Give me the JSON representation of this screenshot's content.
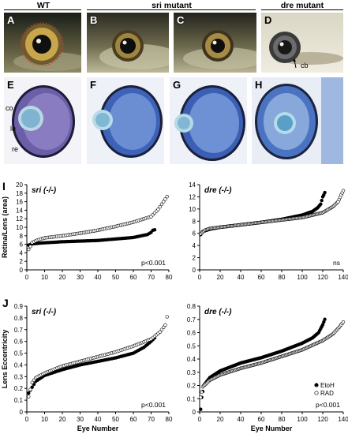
{
  "figure": {
    "headers": {
      "wt": "WT",
      "sri": "sri mutant",
      "dre": "dre mutant"
    },
    "photo_panels": [
      "A",
      "B",
      "C",
      "D"
    ],
    "histology_panels": [
      "E",
      "F",
      "G",
      "H"
    ],
    "annotations": {
      "cb": "cb",
      "co": "co",
      "le": "le",
      "re": "re"
    },
    "row_labels": {
      "i": "I",
      "j": "J"
    }
  },
  "chart_data": [
    {
      "type": "scatter",
      "panel": "I",
      "title": "sri (-/-)",
      "ylabel": "Retina/Lens (area)",
      "xlabel": "",
      "xlim": [
        0,
        80
      ],
      "ylim": [
        0,
        20
      ],
      "xticks": [
        0,
        10,
        20,
        30,
        40,
        50,
        60,
        70,
        80
      ],
      "yticks": [
        0,
        2,
        4,
        6,
        8,
        10,
        12,
        14,
        16,
        18,
        20
      ],
      "annotation": "p<0.001",
      "series": [
        {
          "name": "EtoH",
          "marker": "filled",
          "n": 72,
          "values": [
            [
              1,
              5.8
            ],
            [
              3,
              6.1
            ],
            [
              8,
              6.3
            ],
            [
              20,
              6.6
            ],
            [
              40,
              6.9
            ],
            [
              60,
              7.6
            ],
            [
              68,
              8.3
            ],
            [
              70,
              8.8
            ],
            [
              71,
              9.3
            ],
            [
              72,
              9.4
            ]
          ]
        },
        {
          "name": "RAD",
          "marker": "open",
          "n": 79,
          "values": [
            [
              1,
              4.8
            ],
            [
              2,
              5.5
            ],
            [
              3,
              6.4
            ],
            [
              6,
              7.0
            ],
            [
              10,
              7.5
            ],
            [
              20,
              8.0
            ],
            [
              30,
              8.6
            ],
            [
              40,
              9.3
            ],
            [
              50,
              10.2
            ],
            [
              60,
              11.2
            ],
            [
              70,
              12.5
            ],
            [
              74,
              14.2
            ],
            [
              77,
              16.0
            ],
            [
              79,
              17.2
            ]
          ]
        }
      ]
    },
    {
      "type": "scatter",
      "panel": "I",
      "title": "dre (-/-)",
      "ylabel": "",
      "xlabel": "",
      "xlim": [
        0,
        140
      ],
      "ylim": [
        0,
        14
      ],
      "xticks": [
        0,
        20,
        40,
        60,
        80,
        100,
        120,
        140
      ],
      "yticks": [
        0,
        2,
        4,
        6,
        8,
        10,
        12,
        14
      ],
      "annotation": "ns",
      "series": [
        {
          "name": "EtoH",
          "marker": "filled",
          "n": 122,
          "values": [
            [
              1,
              5.8
            ],
            [
              3,
              6.3
            ],
            [
              10,
              6.7
            ],
            [
              20,
              7.0
            ],
            [
              40,
              7.4
            ],
            [
              60,
              7.8
            ],
            [
              80,
              8.3
            ],
            [
              100,
              9.0
            ],
            [
              110,
              9.6
            ],
            [
              115,
              10.2
            ],
            [
              118,
              10.8
            ],
            [
              120,
              12.0
            ],
            [
              121,
              12.3
            ],
            [
              122,
              12.7
            ]
          ]
        },
        {
          "name": "RAD",
          "marker": "open",
          "n": 140,
          "values": [
            [
              1,
              5.9
            ],
            [
              5,
              6.5
            ],
            [
              10,
              6.8
            ],
            [
              20,
              7.0
            ],
            [
              40,
              7.4
            ],
            [
              60,
              7.8
            ],
            [
              80,
              8.2
            ],
            [
              100,
              8.6
            ],
            [
              120,
              9.4
            ],
            [
              130,
              10.4
            ],
            [
              135,
              11.2
            ],
            [
              138,
              12.3
            ],
            [
              140,
              13.0
            ]
          ]
        }
      ]
    },
    {
      "type": "scatter",
      "panel": "J",
      "title": "sri (-/-)",
      "ylabel": "Lens Eccentricity",
      "xlabel": "Eye Number",
      "xlim": [
        0,
        80
      ],
      "ylim": [
        0,
        0.9
      ],
      "xticks": [
        0,
        10,
        20,
        30,
        40,
        50,
        60,
        70,
        80
      ],
      "yticks": [
        0,
        0.1,
        0.2,
        0.3,
        0.4,
        0.5,
        0.6,
        0.7,
        0.8,
        0.9
      ],
      "annotation": "p<0.001",
      "series": [
        {
          "name": "EtoH",
          "marker": "filled",
          "n": 72,
          "values": [
            [
              1,
              0.16
            ],
            [
              3,
              0.21
            ],
            [
              5,
              0.26
            ],
            [
              10,
              0.31
            ],
            [
              20,
              0.36
            ],
            [
              30,
              0.4
            ],
            [
              40,
              0.43
            ],
            [
              50,
              0.46
            ],
            [
              60,
              0.5
            ],
            [
              66,
              0.55
            ],
            [
              70,
              0.6
            ],
            [
              72,
              0.63
            ]
          ]
        },
        {
          "name": "RAD",
          "marker": "open",
          "n": 79,
          "values": [
            [
              1,
              0.13
            ],
            [
              3,
              0.25
            ],
            [
              5,
              0.29
            ],
            [
              10,
              0.33
            ],
            [
              20,
              0.39
            ],
            [
              30,
              0.43
            ],
            [
              40,
              0.47
            ],
            [
              50,
              0.51
            ],
            [
              60,
              0.56
            ],
            [
              70,
              0.62
            ],
            [
              75,
              0.68
            ],
            [
              78,
              0.74
            ],
            [
              79,
              0.81
            ]
          ]
        }
      ]
    },
    {
      "type": "scatter",
      "panel": "J",
      "title": "dre (-/-)",
      "ylabel": "",
      "xlabel": "Eye Number",
      "xlim": [
        0,
        140
      ],
      "ylim": [
        0,
        0.8
      ],
      "xticks": [
        0,
        20,
        40,
        60,
        80,
        100,
        120,
        140
      ],
      "yticks": [
        0,
        0.1,
        0.2,
        0.3,
        0.4,
        0.5,
        0.6,
        0.7,
        0.8
      ],
      "annotation": "p<0.001",
      "legend": {
        "position": "bottom-right",
        "entries": [
          "EtoH",
          "RAD"
        ]
      },
      "series": [
        {
          "name": "EtoH",
          "marker": "filled",
          "n": 122,
          "values": [
            [
              1,
              0.02
            ],
            [
              2,
              0.11
            ],
            [
              4,
              0.2
            ],
            [
              10,
              0.26
            ],
            [
              20,
              0.31
            ],
            [
              40,
              0.37
            ],
            [
              60,
              0.41
            ],
            [
              80,
              0.46
            ],
            [
              100,
              0.52
            ],
            [
              110,
              0.56
            ],
            [
              116,
              0.6
            ],
            [
              120,
              0.66
            ],
            [
              122,
              0.7
            ]
          ]
        },
        {
          "name": "RAD",
          "marker": "open",
          "n": 140,
          "values": [
            [
              1,
              0.11
            ],
            [
              3,
              0.19
            ],
            [
              10,
              0.24
            ],
            [
              20,
              0.28
            ],
            [
              40,
              0.33
            ],
            [
              60,
              0.37
            ],
            [
              80,
              0.42
            ],
            [
              100,
              0.47
            ],
            [
              120,
              0.54
            ],
            [
              130,
              0.59
            ],
            [
              136,
              0.64
            ],
            [
              140,
              0.68
            ]
          ]
        }
      ]
    }
  ]
}
